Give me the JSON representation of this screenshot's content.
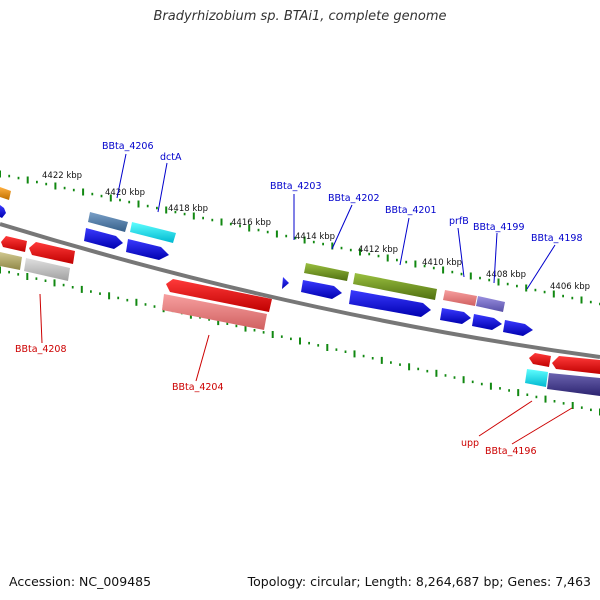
{
  "title": "Bradyrhizobium sp. BTAi1, complete genome",
  "footer": {
    "accession": "Accession: NC_009485",
    "stats": "Topology: circular; Length: 8,264,687 bp; Genes: 7,463"
  },
  "kbp_labels": [
    "4422 kbp",
    "4420 kbp",
    "4418 kbp",
    "4416 kbp",
    "4414 kbp",
    "4412 kbp",
    "4410 kbp",
    "4408 kbp",
    "4406 kbp"
  ],
  "forward_labels": [
    "BBta_4206",
    "dctA",
    "BBta_4203",
    "BBta_4202",
    "BBta_4201",
    "prfB",
    "BBta_4199",
    "BBta_4198"
  ],
  "reverse_labels": [
    "BBta_4208",
    "BBta_4204",
    "upp",
    "BBta_4196"
  ],
  "colors": {
    "backbone": "#777777",
    "tick": "#118811",
    "forward_label": "#0000cc",
    "reverse_label": "#cc0000",
    "cds_forward": "#0000ee",
    "cds_reverse": "#ee0000"
  }
}
